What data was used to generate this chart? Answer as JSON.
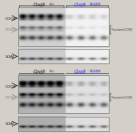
{
  "figure_bg": "#d4d0c8",
  "panel_bg": "#e8e4dc",
  "wt_title": "Coq9",
  "wt_super": "+/+",
  "mut_title": "Coq9",
  "mut_super": "R244W",
  "mut_color": "#1a1aff",
  "wt_color": "#000000",
  "label_coq8": "COQ8",
  "label_pdss2": "PDSS2",
  "label_vdac": "VDAC",
  "label_truncated": "Truncated COQ8",
  "panels": [
    {
      "wt_gel_bg": 0.82,
      "mut_gel_bg": 0.95,
      "coq8_wt": [
        0.85,
        0.8,
        0.78,
        0.76,
        0.8
      ],
      "coq8_mut": [
        0.3,
        0.32,
        0.28,
        0.25
      ],
      "pdss2_wt": [
        0.55,
        0.52,
        0.5,
        0.48,
        0.54
      ],
      "pdss2_mut": [
        0.1,
        0.12,
        0.09,
        0.08
      ],
      "vdac_wt": [
        0.7,
        0.68,
        0.66,
        0.67,
        0.69
      ],
      "vdac_mut": [
        0.62,
        0.64,
        0.6,
        0.58
      ]
    },
    {
      "wt_gel_bg": 0.7,
      "mut_gel_bg": 0.88,
      "coq8_wt": [
        0.92,
        0.9,
        0.88,
        0.86,
        0.89
      ],
      "coq8_mut": [
        0.42,
        0.45,
        0.4,
        0.38
      ],
      "pdss2_wt": [
        0.9,
        0.88,
        0.86,
        0.85,
        0.88
      ],
      "pdss2_mut": [
        0.2,
        0.22,
        0.18,
        0.16
      ],
      "vdac_wt": [
        0.72,
        0.7,
        0.68,
        0.69,
        0.71
      ],
      "vdac_mut": [
        0.65,
        0.67,
        0.63,
        0.61
      ]
    }
  ]
}
